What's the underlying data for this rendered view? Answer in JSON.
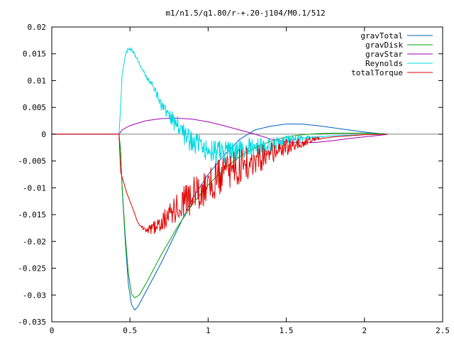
{
  "chart_data": {
    "type": "line",
    "title": "m1/n1.5/q1.80/r-+.20-j104/M0.1/512",
    "xlabel": "",
    "ylabel": "",
    "xlim": [
      0,
      2.5
    ],
    "ylim": [
      -0.035,
      0.02
    ],
    "x_ticks": [
      0,
      0.5,
      1,
      1.5,
      2,
      2.5
    ],
    "x_tick_labels": [
      "0",
      "0.5",
      "1",
      "1.5",
      "2",
      "2.5"
    ],
    "y_ticks": [
      -0.035,
      -0.03,
      -0.025,
      -0.02,
      -0.015,
      -0.01,
      -0.005,
      0,
      0.005,
      0.01,
      0.015,
      0.02
    ],
    "y_tick_labels": [
      "-0.035",
      "-0.03",
      "-0.025",
      "-0.02",
      "-0.015",
      "-0.01",
      "-0.005",
      "0",
      "0.005",
      "0.01",
      "0.015",
      "0.02"
    ],
    "grid": false,
    "legend_position": "top-right",
    "series": [
      {
        "name": "gravTotal",
        "color": "#0060c0",
        "noise": 0,
        "points": [
          [
            0,
            0
          ],
          [
            0.43,
            0
          ],
          [
            0.44,
            -0.003
          ],
          [
            0.45,
            -0.01
          ],
          [
            0.47,
            -0.02
          ],
          [
            0.49,
            -0.028
          ],
          [
            0.51,
            -0.0318
          ],
          [
            0.53,
            -0.0328
          ],
          [
            0.55,
            -0.0322
          ],
          [
            0.6,
            -0.0295
          ],
          [
            0.7,
            -0.024
          ],
          [
            0.8,
            -0.018
          ],
          [
            0.9,
            -0.012
          ],
          [
            1.0,
            -0.0075
          ],
          [
            1.1,
            -0.004
          ],
          [
            1.2,
            -0.001
          ],
          [
            1.3,
            0.0008
          ],
          [
            1.4,
            0.0015
          ],
          [
            1.5,
            0.0019
          ],
          [
            1.6,
            0.0019
          ],
          [
            1.7,
            0.0016
          ],
          [
            1.8,
            0.0012
          ],
          [
            1.9,
            0.0008
          ],
          [
            2.0,
            0.0004
          ],
          [
            2.1,
            0.0001
          ],
          [
            2.15,
            0
          ]
        ]
      },
      {
        "name": "gravDisk",
        "color": "#00a000",
        "noise": 0,
        "points": [
          [
            0,
            0
          ],
          [
            0.43,
            0
          ],
          [
            0.44,
            -0.003
          ],
          [
            0.45,
            -0.01
          ],
          [
            0.47,
            -0.019
          ],
          [
            0.49,
            -0.026
          ],
          [
            0.51,
            -0.0298
          ],
          [
            0.53,
            -0.0305
          ],
          [
            0.56,
            -0.03
          ],
          [
            0.6,
            -0.028
          ],
          [
            0.7,
            -0.0225
          ],
          [
            0.8,
            -0.0175
          ],
          [
            0.9,
            -0.013
          ],
          [
            1.0,
            -0.0095
          ],
          [
            1.1,
            -0.0065
          ],
          [
            1.2,
            -0.0042
          ],
          [
            1.3,
            -0.0025
          ],
          [
            1.4,
            -0.0013
          ],
          [
            1.5,
            -0.0005
          ],
          [
            1.6,
            -0.0001
          ],
          [
            1.7,
            0.0001
          ],
          [
            1.8,
            0.0002
          ],
          [
            1.9,
            0.0002
          ],
          [
            2.0,
            0.0002
          ],
          [
            2.1,
            0.0001
          ],
          [
            2.15,
            0
          ]
        ]
      },
      {
        "name": "gravStar",
        "color": "#a000b0",
        "noise": 0,
        "points": [
          [
            0,
            0
          ],
          [
            0.43,
            0
          ],
          [
            0.45,
            0.0008
          ],
          [
            0.5,
            0.0016
          ],
          [
            0.6,
            0.0025
          ],
          [
            0.7,
            0.0029
          ],
          [
            0.8,
            0.003
          ],
          [
            0.9,
            0.0028
          ],
          [
            1.0,
            0.0023
          ],
          [
            1.1,
            0.0016
          ],
          [
            1.2,
            0.0008
          ],
          [
            1.3,
            0
          ],
          [
            1.4,
            -0.0009
          ],
          [
            1.5,
            -0.0014
          ],
          [
            1.6,
            -0.0016
          ],
          [
            1.7,
            -0.0015
          ],
          [
            1.8,
            -0.0012
          ],
          [
            1.9,
            -0.0008
          ],
          [
            2.0,
            -0.0005
          ],
          [
            2.1,
            -0.0002
          ],
          [
            2.15,
            0
          ]
        ]
      },
      {
        "name": "Reynolds",
        "color": "#00d8e0",
        "noise": 0.0022,
        "points": [
          [
            0.43,
            0
          ],
          [
            0.44,
            0.005
          ],
          [
            0.45,
            0.011
          ],
          [
            0.47,
            0.0148
          ],
          [
            0.49,
            0.0159
          ],
          [
            0.51,
            0.0158
          ],
          [
            0.53,
            0.015
          ],
          [
            0.56,
            0.0132
          ],
          [
            0.6,
            0.011
          ],
          [
            0.65,
            0.0088
          ],
          [
            0.7,
            0.0055
          ],
          [
            0.75,
            0.003
          ],
          [
            0.8,
            0.002
          ],
          [
            0.85,
            0
          ],
          [
            0.9,
            -0.0015
          ],
          [
            1.0,
            -0.003
          ],
          [
            1.1,
            -0.0035
          ],
          [
            1.2,
            -0.003
          ],
          [
            1.3,
            -0.0025
          ],
          [
            1.4,
            -0.002
          ],
          [
            1.5,
            -0.0012
          ],
          [
            1.6,
            -0.0008
          ],
          [
            1.7,
            -0.0005
          ],
          [
            1.8,
            -0.0003
          ],
          [
            1.9,
            -0.0002
          ],
          [
            2.0,
            -0.0001
          ],
          [
            2.15,
            0
          ]
        ]
      },
      {
        "name": "totalTorque",
        "color": "#e00000",
        "noise": 0.0035,
        "points": [
          [
            0,
            0
          ],
          [
            0.43,
            0
          ],
          [
            0.44,
            -0.007
          ],
          [
            0.46,
            -0.009
          ],
          [
            0.48,
            -0.011
          ],
          [
            0.5,
            -0.0125
          ],
          [
            0.52,
            -0.014
          ],
          [
            0.55,
            -0.0165
          ],
          [
            0.6,
            -0.018
          ],
          [
            0.65,
            -0.0175
          ],
          [
            0.7,
            -0.0165
          ],
          [
            0.8,
            -0.014
          ],
          [
            0.9,
            -0.0115
          ],
          [
            1.0,
            -0.0095
          ],
          [
            1.1,
            -0.0075
          ],
          [
            1.2,
            -0.006
          ],
          [
            1.3,
            -0.0048
          ],
          [
            1.4,
            -0.0035
          ],
          [
            1.5,
            -0.0025
          ],
          [
            1.6,
            -0.0015
          ],
          [
            1.7,
            -0.0009
          ],
          [
            1.8,
            -0.0005
          ],
          [
            1.9,
            -0.0003
          ],
          [
            2.0,
            -0.0001
          ],
          [
            2.15,
            0
          ]
        ]
      }
    ]
  }
}
